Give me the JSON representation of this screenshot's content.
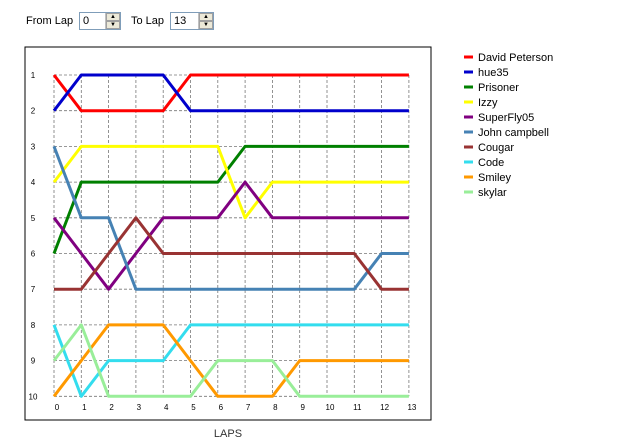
{
  "controls": {
    "from_label": "From Lap",
    "from_value": "0",
    "to_label": "To Lap",
    "to_value": "13",
    "up_glyph": "▲",
    "down_glyph": "▼"
  },
  "chart_data": {
    "type": "line",
    "xlabel": "LAPS",
    "ylabel": "",
    "x": [
      0,
      1,
      2,
      3,
      4,
      5,
      6,
      7,
      8,
      9,
      10,
      11,
      12,
      13
    ],
    "xlim": [
      0,
      13
    ],
    "ylim": [
      10,
      1
    ],
    "y_ticks": [
      1,
      2,
      3,
      4,
      5,
      6,
      7,
      8,
      9,
      10
    ],
    "grid": true,
    "legend": "right",
    "series": [
      {
        "name": "David Peterson",
        "color": "#ff0000",
        "values": [
          1,
          2,
          2,
          2,
          2,
          1,
          1,
          1,
          1,
          1,
          1,
          1,
          1,
          1
        ]
      },
      {
        "name": "hue35",
        "color": "#0000cc",
        "values": [
          2,
          1,
          1,
          1,
          1,
          2,
          2,
          2,
          2,
          2,
          2,
          2,
          2,
          2
        ]
      },
      {
        "name": "Prisoner",
        "color": "#008000",
        "values": [
          6,
          4,
          4,
          4,
          4,
          4,
          4,
          3,
          3,
          3,
          3,
          3,
          3,
          3
        ]
      },
      {
        "name": "Izzy",
        "color": "#ffff00",
        "values": [
          4,
          3,
          3,
          3,
          3,
          3,
          3,
          5,
          4,
          4,
          4,
          4,
          4,
          4
        ]
      },
      {
        "name": "SuperFly05",
        "color": "#800080",
        "values": [
          5,
          6,
          7,
          6,
          5,
          5,
          5,
          4,
          5,
          5,
          5,
          5,
          5,
          5
        ]
      },
      {
        "name": "John campbell",
        "color": "#4682b4",
        "values": [
          3,
          5,
          5,
          7,
          7,
          7,
          7,
          7,
          7,
          7,
          7,
          7,
          6,
          6
        ]
      },
      {
        "name": "Cougar",
        "color": "#993333",
        "values": [
          7,
          7,
          6,
          5,
          6,
          6,
          6,
          6,
          6,
          6,
          6,
          6,
          7,
          7
        ]
      },
      {
        "name": "Code",
        "color": "#33ddee",
        "values": [
          8,
          10,
          9,
          9,
          9,
          8,
          8,
          8,
          8,
          8,
          8,
          8,
          8,
          8
        ]
      },
      {
        "name": "Smiley",
        "color": "#ff9900",
        "values": [
          10,
          9,
          8,
          8,
          8,
          9,
          10,
          10,
          10,
          9,
          9,
          9,
          9,
          9
        ]
      },
      {
        "name": "skylar",
        "color": "#99ee99",
        "values": [
          9,
          8,
          10,
          10,
          10,
          10,
          9,
          9,
          9,
          10,
          10,
          10,
          10,
          10
        ]
      }
    ]
  }
}
